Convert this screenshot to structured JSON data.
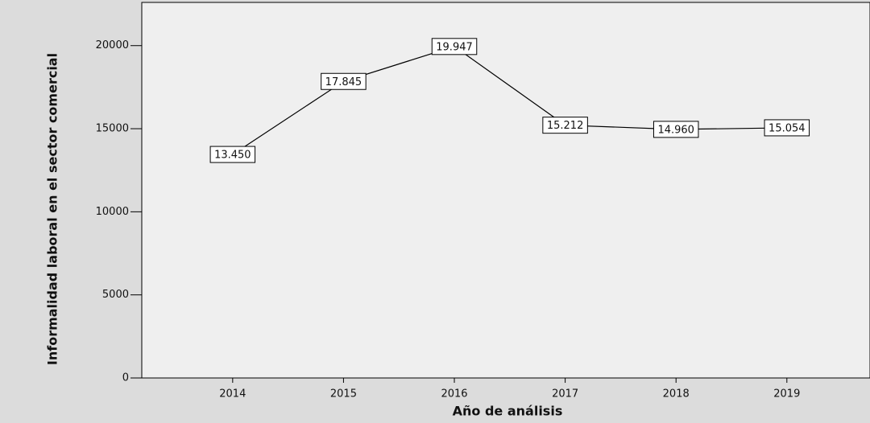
{
  "chart_data": {
    "type": "line",
    "x": [
      2014,
      2015,
      2016,
      2017,
      2018,
      2019
    ],
    "series": [
      {
        "name": "Informalidad laboral",
        "color": "#000000",
        "values": [
          13450,
          17845,
          19947,
          15212,
          14960,
          15054
        ],
        "value_labels": [
          "13.450",
          "17.845",
          "19.947",
          "15.212",
          "14.960",
          "15.054"
        ]
      }
    ],
    "xlim": [
      2013.18,
      2019.75
    ],
    "xticks": [
      2014,
      2015,
      2016,
      2017,
      2018,
      2019
    ],
    "ylim": [
      0,
      22600
    ],
    "yticks": [
      0,
      5000,
      10000,
      15000,
      20000
    ],
    "xlabel": "Año de análisis",
    "ylabel": "Informalidad laboral en el sector comercial"
  }
}
